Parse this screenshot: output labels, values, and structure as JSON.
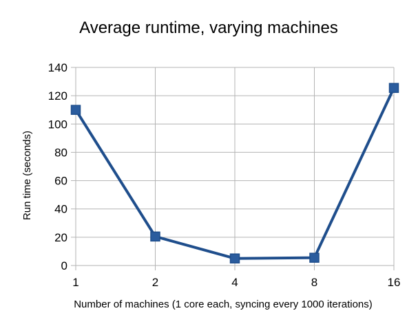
{
  "chart_data": {
    "type": "line",
    "title": "Average runtime, varying machines",
    "xlabel": "Number of machines (1 core each, syncing every 1000 iterations)",
    "ylabel": "Run time (seconds)",
    "categories": [
      "1",
      "2",
      "4",
      "8",
      "16"
    ],
    "series": [
      {
        "values": [
          110,
          20.5,
          5,
          5.5,
          125.5
        ]
      }
    ],
    "ylim": [
      0,
      140
    ],
    "yticks": [
      0,
      20,
      40,
      60,
      80,
      100,
      120,
      140
    ],
    "grid": true,
    "legend": "none",
    "colors": {
      "series": "#1f4e8c",
      "marker_fill": "#2a5c9e",
      "grid": "#b3b3b3",
      "axis": "#b3b3b3"
    }
  }
}
